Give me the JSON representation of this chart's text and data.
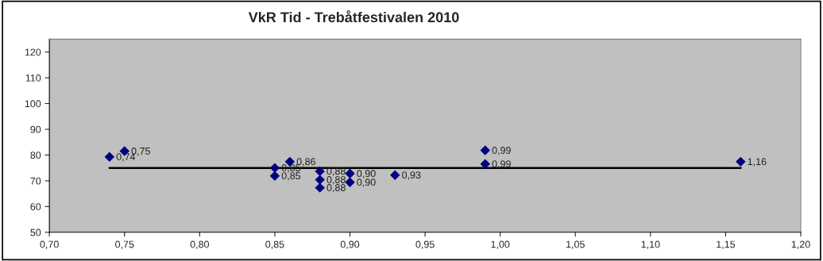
{
  "chart_data": {
    "type": "scatter",
    "title": "VkR Tid - Trebåtfestivalen 2010",
    "series": [
      {
        "color": "#000080",
        "marker": "diamond",
        "x": [
          0.74,
          0.75,
          0.85,
          0.85,
          0.86,
          0.88,
          0.88,
          0.88,
          0.9,
          0.9,
          0.93,
          0.99,
          0.99,
          1.16
        ],
        "values": [
          79.3,
          81.5,
          75.0,
          71.9,
          77.4,
          73.7,
          70.4,
          67.3,
          72.8,
          69.4,
          72.2,
          81.8,
          76.5,
          77.4
        ]
      },
      {
        "type": "line",
        "color": "#000000",
        "marker": "none",
        "line_style": "solid",
        "x": [
          0.74,
          1.16
        ],
        "values": [
          75.0,
          75.0
        ]
      }
    ],
    "xlim": [
      0.7,
      1.2
    ],
    "xticks": [
      {
        "value": 0.7,
        "label": "0,70"
      },
      {
        "value": 0.75,
        "label": "0,75"
      },
      {
        "value": 0.8,
        "label": "0,80"
      },
      {
        "value": 0.85,
        "label": "0,85"
      },
      {
        "value": 0.9,
        "label": "0,90"
      },
      {
        "value": 0.95,
        "label": "0,95"
      },
      {
        "value": 1.0,
        "label": "1,00"
      },
      {
        "value": 1.05,
        "label": "1,05"
      },
      {
        "value": 1.1,
        "label": "1,10"
      },
      {
        "value": 1.15,
        "label": "1,15"
      },
      {
        "value": 1.2,
        "label": "1,20"
      }
    ],
    "ylim": [
      50,
      125
    ],
    "yticks": [
      50,
      60,
      70,
      80,
      90,
      100,
      110,
      120
    ],
    "annotations": [
      {
        "text": "0,74",
        "x": 0.74,
        "y": 79.3
      },
      {
        "text": "0,75",
        "x": 0.75,
        "y": 81.5
      },
      {
        "text": "0,85",
        "x": 0.85,
        "y": 75.0
      },
      {
        "text": "0,85",
        "x": 0.85,
        "y": 71.9
      },
      {
        "text": "0,86",
        "x": 0.86,
        "y": 77.4
      },
      {
        "text": "0,88",
        "x": 0.88,
        "y": 73.7
      },
      {
        "text": "0,88",
        "x": 0.88,
        "y": 70.4
      },
      {
        "text": "0,88",
        "x": 0.88,
        "y": 67.3
      },
      {
        "text": "0,90",
        "x": 0.9,
        "y": 72.8
      },
      {
        "text": "0,90",
        "x": 0.9,
        "y": 69.4
      },
      {
        "text": "0,93",
        "x": 0.93,
        "y": 72.2
      },
      {
        "text": "0,99",
        "x": 0.99,
        "y": 81.8
      },
      {
        "text": "0,99",
        "x": 0.99,
        "y": 76.5
      },
      {
        "text": "1,16",
        "x": 1.16,
        "y": 77.4
      }
    ],
    "grid": false,
    "legend": false
  }
}
